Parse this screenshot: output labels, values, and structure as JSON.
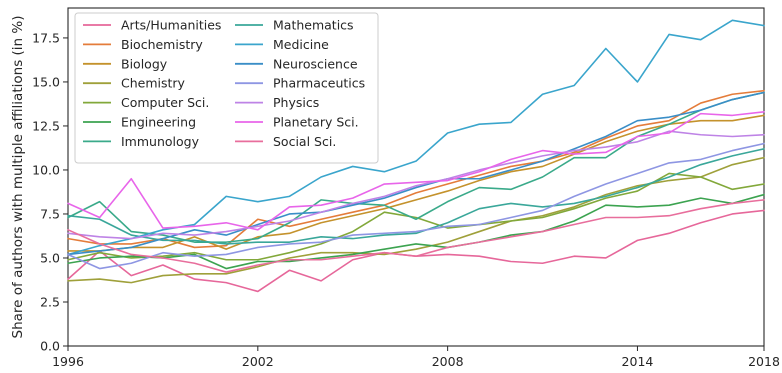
{
  "chart_data": {
    "type": "line",
    "xlabel": "",
    "ylabel": "Share of authors with multiple affiliations (in %)",
    "xlim": [
      1996,
      2018
    ],
    "ylim": [
      0,
      19.2
    ],
    "xticks": [
      "1996",
      "2002",
      "2008",
      "2014",
      "2018"
    ],
    "xtick_values": [
      1996,
      2002,
      2008,
      2014,
      2018
    ],
    "yticks": [
      "0.0",
      "2.5",
      "5.0",
      "7.5",
      "10.0",
      "12.5",
      "15.0",
      "17.5"
    ],
    "ytick_values": [
      0,
      2.5,
      5,
      7.5,
      10,
      12.5,
      15,
      17.5
    ],
    "grid": false,
    "legend_position": "top-left",
    "x": [
      1996,
      1997,
      1998,
      1999,
      2000,
      2001,
      2002,
      2003,
      2004,
      2005,
      2006,
      2007,
      2008,
      2009,
      2010,
      2011,
      2012,
      2013,
      2014,
      2015,
      2016,
      2017,
      2018
    ],
    "series": [
      {
        "name": "Arts/Humanities",
        "color": "#e6679a",
        "values": [
          3.8,
          5.4,
          4.0,
          4.6,
          3.8,
          3.6,
          3.1,
          4.3,
          3.7,
          4.9,
          5.3,
          5.1,
          5.2,
          5.1,
          4.8,
          4.7,
          5.1,
          5.0,
          6.0,
          6.4,
          7.0,
          7.5,
          7.7
        ]
      },
      {
        "name": "Biochemistry",
        "color": "#e47c3a",
        "values": [
          6.1,
          5.8,
          5.8,
          6.1,
          5.6,
          5.7,
          7.2,
          6.8,
          7.2,
          7.6,
          8.0,
          8.7,
          9.2,
          9.7,
          10.2,
          10.5,
          11.0,
          11.8,
          12.5,
          12.8,
          13.8,
          14.3,
          14.5
        ]
      },
      {
        "name": "Biology",
        "color": "#c4922c",
        "values": [
          5.4,
          5.4,
          5.6,
          5.6,
          6.2,
          5.5,
          6.2,
          6.4,
          7.0,
          7.4,
          7.8,
          8.3,
          8.8,
          9.4,
          9.9,
          10.2,
          10.9,
          11.6,
          12.2,
          12.6,
          12.8,
          12.8,
          13.1
        ]
      },
      {
        "name": "Chemistry",
        "color": "#9fa03a",
        "values": [
          3.7,
          3.8,
          3.6,
          4.0,
          4.1,
          4.1,
          4.5,
          5.0,
          5.3,
          5.3,
          5.2,
          5.5,
          5.9,
          6.5,
          7.1,
          7.4,
          7.9,
          8.6,
          9.1,
          9.4,
          9.6,
          10.3,
          10.7
        ]
      },
      {
        "name": "Computer Sci.",
        "color": "#82a83a",
        "values": [
          4.9,
          5.3,
          5.0,
          5.1,
          5.3,
          4.9,
          4.9,
          5.3,
          5.8,
          6.5,
          7.6,
          7.3,
          6.7,
          6.9,
          7.1,
          7.3,
          7.8,
          8.4,
          8.8,
          9.8,
          9.6,
          8.9,
          9.2
        ]
      },
      {
        "name": "Engineering",
        "color": "#3ca350",
        "values": [
          4.7,
          5.0,
          5.1,
          5.0,
          5.2,
          4.4,
          4.8,
          4.8,
          5.0,
          5.2,
          5.5,
          5.8,
          5.6,
          5.9,
          6.3,
          6.5,
          7.1,
          8.0,
          7.9,
          8.0,
          8.4,
          8.1,
          8.6
        ]
      },
      {
        "name": "Immunology",
        "color": "#3aaa8a",
        "values": [
          7.3,
          8.2,
          6.5,
          6.3,
          5.9,
          5.9,
          6.1,
          7.0,
          8.3,
          8.1,
          8.0,
          7.2,
          8.2,
          9.0,
          8.9,
          9.6,
          10.7,
          10.7,
          11.9,
          12.6,
          13.4,
          14.0,
          14.4
        ]
      },
      {
        "name": "Mathematics",
        "color": "#3aa79a",
        "values": [
          7.4,
          7.2,
          6.3,
          6.0,
          6.0,
          5.8,
          5.9,
          5.9,
          6.2,
          6.1,
          6.3,
          6.4,
          7.0,
          7.8,
          8.1,
          7.9,
          8.1,
          8.5,
          9.0,
          9.6,
          10.3,
          10.8,
          11.2
        ]
      },
      {
        "name": "Medicine",
        "color": "#3aa5cc",
        "values": [
          5.2,
          5.7,
          6.1,
          6.6,
          6.9,
          8.5,
          8.2,
          8.5,
          9.6,
          10.2,
          9.9,
          10.5,
          12.1,
          12.6,
          12.7,
          14.3,
          14.8,
          16.9,
          15.0,
          17.7,
          17.4,
          18.5,
          18.2
        ]
      },
      {
        "name": "Neuroscience",
        "color": "#3a8ec7",
        "values": [
          5.2,
          5.4,
          5.6,
          6.1,
          6.6,
          6.3,
          6.9,
          7.5,
          7.6,
          8.0,
          8.4,
          9.0,
          9.5,
          9.5,
          10.0,
          10.5,
          11.2,
          11.9,
          12.8,
          13.0,
          13.4,
          14.0,
          14.4
        ]
      },
      {
        "name": "Pharmaceutics",
        "color": "#8e96e3",
        "values": [
          5.2,
          4.4,
          4.7,
          5.3,
          5.1,
          5.2,
          5.6,
          5.8,
          5.9,
          6.3,
          6.4,
          6.5,
          6.8,
          6.9,
          7.3,
          7.7,
          8.5,
          9.2,
          9.8,
          10.4,
          10.6,
          11.1,
          11.5
        ]
      },
      {
        "name": "Physics",
        "color": "#be83e6",
        "values": [
          6.4,
          6.2,
          6.1,
          6.4,
          6.3,
          6.5,
          6.8,
          7.1,
          7.6,
          8.1,
          8.5,
          9.1,
          9.5,
          10.0,
          10.4,
          10.8,
          11.1,
          11.3,
          11.6,
          12.2,
          12.0,
          11.9,
          12.0
        ]
      },
      {
        "name": "Planetary Sci.",
        "color": "#e865ea",
        "values": [
          8.1,
          7.3,
          9.5,
          6.7,
          6.8,
          7.0,
          6.6,
          7.9,
          8.0,
          8.4,
          9.2,
          9.3,
          9.4,
          9.9,
          10.6,
          11.1,
          10.9,
          11.0,
          11.9,
          12.1,
          13.2,
          13.1,
          13.3
        ]
      },
      {
        "name": "Social Sci.",
        "color": "#e86e9c",
        "values": [
          6.6,
          5.8,
          5.2,
          5.0,
          4.7,
          4.2,
          4.6,
          4.9,
          4.9,
          5.1,
          5.3,
          5.1,
          5.6,
          5.9,
          6.2,
          6.5,
          6.9,
          7.3,
          7.3,
          7.4,
          7.8,
          8.1,
          8.3
        ]
      }
    ]
  }
}
